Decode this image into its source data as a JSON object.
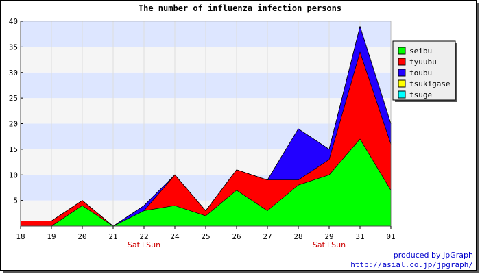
{
  "chart_data": {
    "type": "area",
    "stacked": true,
    "title": "The number of influenza infection persons",
    "x": [
      "18",
      "19",
      "20",
      "21",
      "22",
      "24",
      "25",
      "26",
      "27",
      "28",
      "29",
      "31",
      "01"
    ],
    "x_sublabels": [
      "",
      "",
      "",
      "",
      "Sat+Sun",
      "",
      "",
      "",
      "",
      "",
      "Sat+Sun",
      "",
      ""
    ],
    "ylim": [
      0,
      40
    ],
    "yticks": [
      5,
      10,
      15,
      20,
      25,
      30,
      35,
      40
    ],
    "grid": true,
    "legend_position": "top-right",
    "series": [
      {
        "name": "seibu",
        "color": "#00ff00",
        "values": [
          0,
          0,
          4,
          0,
          3,
          4,
          2,
          7,
          3,
          8,
          10,
          17,
          7
        ]
      },
      {
        "name": "tyuubu",
        "color": "#ff0000",
        "values": [
          1,
          1,
          1,
          0,
          0,
          6,
          1,
          4,
          6,
          1,
          3,
          17,
          9
        ]
      },
      {
        "name": "toubu",
        "color": "#2200ff",
        "values": [
          0,
          0,
          0,
          0,
          1,
          0,
          0,
          0,
          0,
          10,
          2,
          5,
          4
        ]
      },
      {
        "name": "tsukigase",
        "color": "#ffff00",
        "values": [
          0,
          0,
          0,
          0,
          0,
          0,
          0,
          0,
          0,
          0,
          0,
          0,
          0
        ]
      },
      {
        "name": "tsuge",
        "color": "#00ffff",
        "values": [
          0,
          0,
          0,
          0,
          0,
          0,
          0,
          0,
          0,
          0,
          0,
          0,
          0
        ]
      }
    ]
  },
  "colors": {
    "band_light": "#dde6ff",
    "band_alt": "#f5f5f5",
    "sublabel": "#cc0000",
    "credit": "#0000cc"
  },
  "footer": {
    "credit_line1": "produced by JpGraph",
    "credit_line2": "http://asial.co.jp/jpgraph/"
  }
}
